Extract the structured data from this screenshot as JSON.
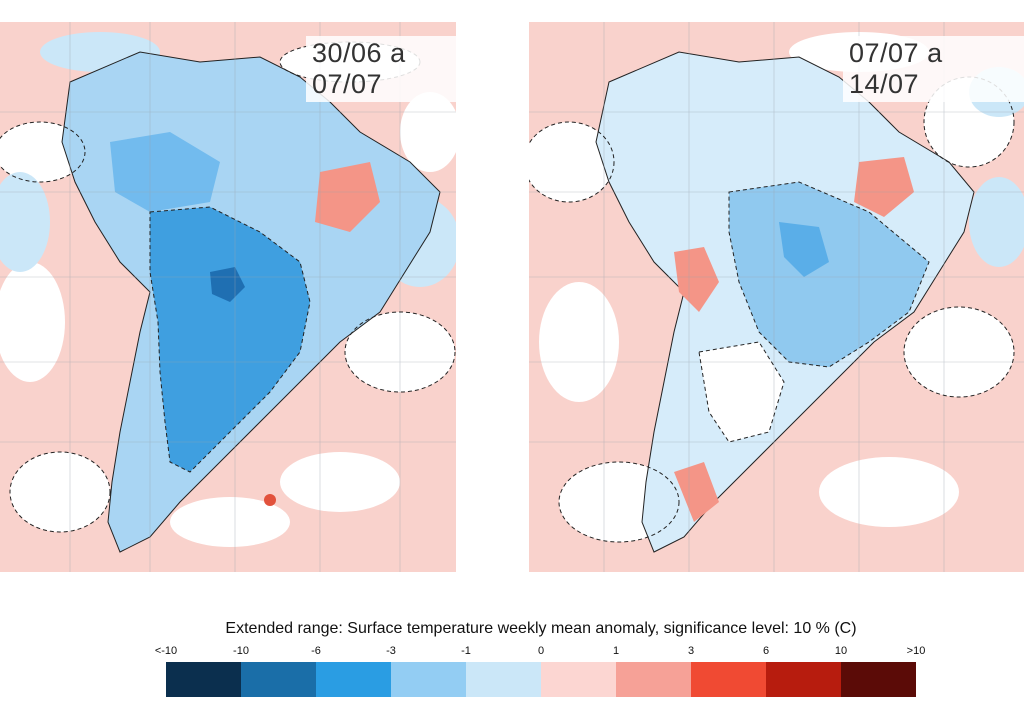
{
  "maps": [
    {
      "period": "30/06 a 07/07"
    },
    {
      "period": "07/07 a 14/07"
    }
  ],
  "legend": {
    "title": "Extended range: Surface temperature weekly mean anomaly, significance level: 10 % (C)",
    "ticks": [
      "<-10",
      "-10",
      "-6",
      "-3",
      "-1",
      "0",
      "1",
      "3",
      "6",
      "10",
      ">10"
    ],
    "colors": [
      "#0b2f4e",
      "#1a6ea8",
      "#2a9de3",
      "#93cdf3",
      "#cbe7f8",
      "#fcd6d2",
      "#f6a197",
      "#f04a33",
      "#b71c0e",
      "#5b0b07"
    ]
  },
  "colors": {
    "land_cold_strong": "#3f9fe0",
    "land_cold": "#90c9ef",
    "land_cold_light": "#c8e4f6",
    "neutral": "#ffffff",
    "warm_light": "#f9cbc5",
    "warm": "#f49587",
    "warm_strong": "#e2523c"
  }
}
